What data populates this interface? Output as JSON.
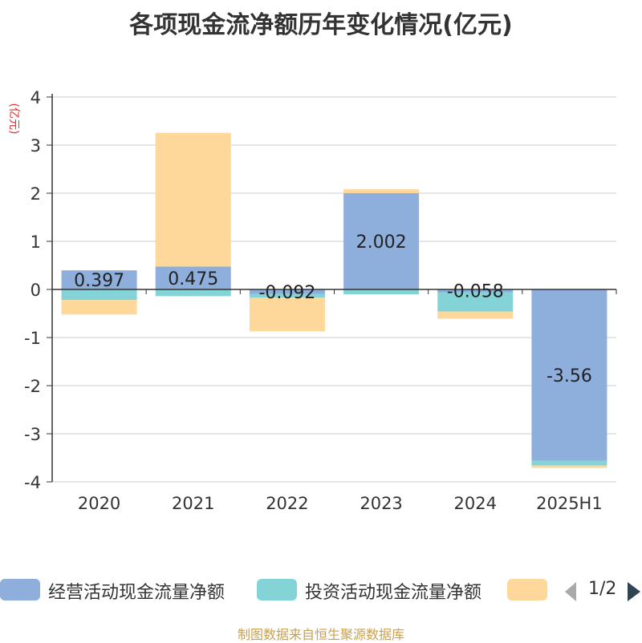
{
  "chart_data": {
    "type": "bar",
    "stacked": true,
    "title": "各项现金流净额历年变化情况(亿元)",
    "ylabel": "(亿元)",
    "categories": [
      "2020",
      "2021",
      "2022",
      "2023",
      "2024",
      "2025H1"
    ],
    "ylim": [
      -4,
      4
    ],
    "yticks": [
      4,
      3,
      2,
      1,
      0,
      -1,
      -2,
      -3,
      -4
    ],
    "grid": true,
    "legend_position": "bottom",
    "series": [
      {
        "name": "经营活动现金流量净额",
        "color": "#8eaedb",
        "values": [
          0.397,
          0.475,
          -0.092,
          2.002,
          -0.058,
          -3.56
        ]
      },
      {
        "name": "投资活动现金流量净额",
        "color": "#84d3d6",
        "values": [
          -0.22,
          -0.14,
          -0.08,
          -0.1,
          -0.4,
          -0.1
        ]
      },
      {
        "name": "",
        "color": "#fdd89a",
        "values": [
          -0.3,
          2.78,
          -0.7,
          0.08,
          -0.15,
          -0.05
        ]
      }
    ],
    "data_labels": [
      "0.397",
      "0.475",
      "-0.092",
      "2.002",
      "-0.058",
      "-3.56"
    ]
  },
  "legend": {
    "page": "1/2"
  },
  "source": "制图数据来自恒生聚源数据库"
}
